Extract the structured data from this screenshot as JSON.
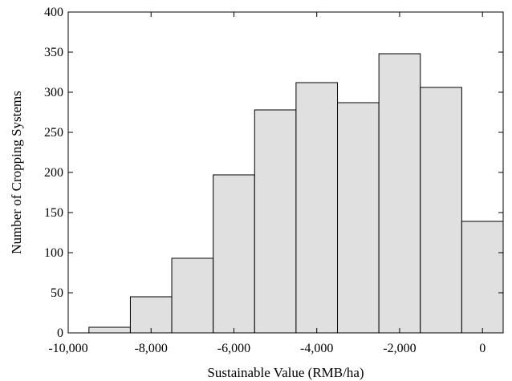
{
  "chart_data": {
    "type": "bar",
    "title": "",
    "xlabel": "Sustainable Value (RMB/ha)",
    "ylabel": "Number of Cropping Systems",
    "bins": [
      {
        "x0": -9500,
        "x1": -8500,
        "value": 7
      },
      {
        "x0": -8500,
        "x1": -7500,
        "value": 45
      },
      {
        "x0": -7500,
        "x1": -6500,
        "value": 93
      },
      {
        "x0": -6500,
        "x1": -5500,
        "value": 197
      },
      {
        "x0": -5500,
        "x1": -4500,
        "value": 278
      },
      {
        "x0": -4500,
        "x1": -3500,
        "value": 312
      },
      {
        "x0": -3500,
        "x1": -2500,
        "value": 287
      },
      {
        "x0": -2500,
        "x1": -1500,
        "value": 348
      },
      {
        "x0": -1500,
        "x1": -500,
        "value": 306
      },
      {
        "x0": -500,
        "x1": 500,
        "value": 139
      }
    ],
    "xlim": [
      -10000,
      500
    ],
    "ylim": [
      0,
      400
    ],
    "xticks": [
      -10000,
      -8000,
      -6000,
      -4000,
      -2000,
      0
    ],
    "xtick_labels": [
      "-10,000",
      "-8,000",
      "-6,000",
      "-4,000",
      "-2,000",
      "0"
    ],
    "yticks": [
      0,
      50,
      100,
      150,
      200,
      250,
      300,
      350,
      400
    ],
    "ytick_labels": [
      "0",
      "50",
      "100",
      "150",
      "200",
      "250",
      "300",
      "350",
      "400"
    ],
    "grid": false,
    "bar_fill": "#e0e0e0",
    "bar_stroke": "#000000"
  }
}
